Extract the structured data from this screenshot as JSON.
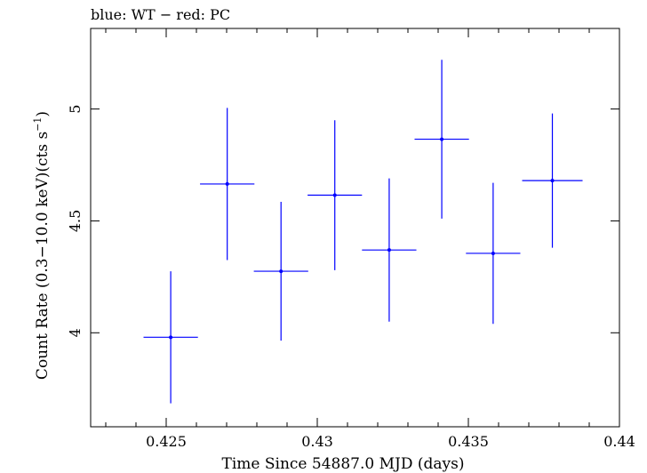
{
  "chart_data": {
    "type": "scatter",
    "title": "blue: WT − red: PC",
    "xlabel": "Time Since 54887.0 MJD (days)",
    "ylabel_main": "Count Rate (0.3−10.0 keV)(cts s",
    "ylabel_sup": "−1",
    "ylabel_end": ")",
    "xlim": [
      0.4225,
      0.44
    ],
    "ylim": [
      3.58,
      5.36
    ],
    "xticks": [
      0.425,
      0.43,
      0.435,
      0.44
    ],
    "xtick_labels": [
      "0.425",
      "0.43",
      "0.435",
      "0.44"
    ],
    "yticks": [
      4,
      4.5,
      5
    ],
    "ytick_labels": [
      "4",
      "4.5",
      "5"
    ],
    "colors": {
      "wt": "#0000ff",
      "pc": "#ff0000",
      "axes": "#000000"
    },
    "series": [
      {
        "name": "WT",
        "color": "#0000ff",
        "points": [
          {
            "x": 0.42515,
            "y": 3.98,
            "xerr": 0.0009,
            "yerr": 0.295
          },
          {
            "x": 0.42702,
            "y": 4.665,
            "xerr": 0.0009,
            "yerr": 0.34
          },
          {
            "x": 0.4288,
            "y": 4.275,
            "xerr": 0.0009,
            "yerr": 0.31
          },
          {
            "x": 0.43058,
            "y": 4.615,
            "xerr": 0.0009,
            "yerr": 0.335
          },
          {
            "x": 0.43238,
            "y": 4.37,
            "xerr": 0.0009,
            "yerr": 0.32
          },
          {
            "x": 0.43412,
            "y": 4.865,
            "xerr": 0.0009,
            "yerr": 0.355
          },
          {
            "x": 0.43582,
            "y": 4.355,
            "xerr": 0.0009,
            "yerr": 0.315
          },
          {
            "x": 0.43778,
            "y": 4.68,
            "xerr": 0.001,
            "yerr": 0.3
          }
        ]
      }
    ]
  }
}
